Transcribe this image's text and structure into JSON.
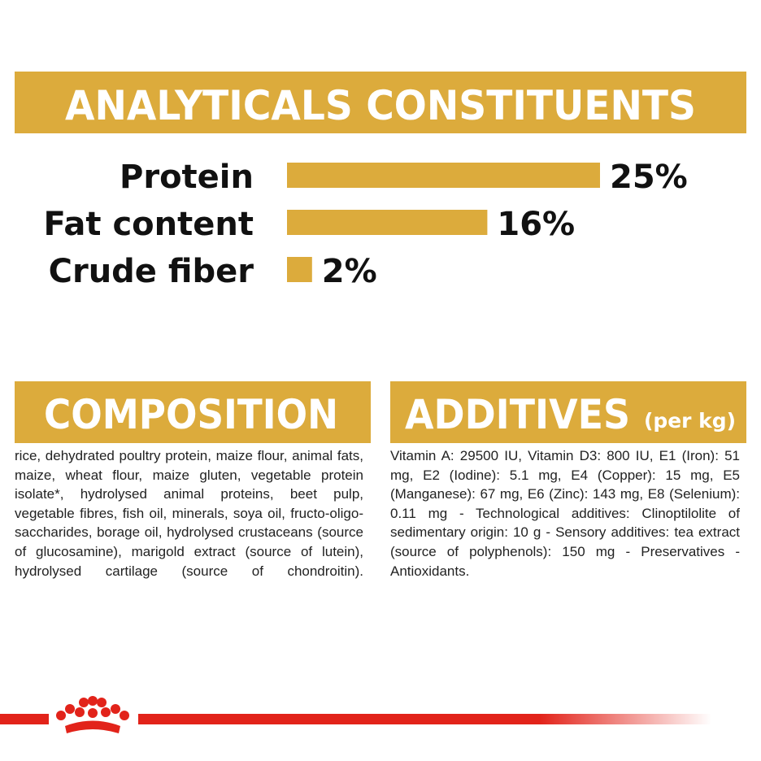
{
  "chart_data": {
    "type": "bar",
    "orientation": "horizontal",
    "title": "ANALYTICALS CONSTITUENTS",
    "categories": [
      "Protein",
      "Fat content",
      "Crude fiber"
    ],
    "values": [
      25,
      16,
      2
    ],
    "value_labels": [
      "25%",
      "16%",
      "2%"
    ],
    "color": "#dcab3c"
  },
  "composition": {
    "title": "COMPOSITION",
    "text": "rice, dehydrated poultry protein, maize flour, animal fats, maize, wheat flour, maize gluten, vegetable protein isolate*, hydrolysed animal proteins, beet pulp, vegetable fibres, fish oil, minerals, soya oil, fructo-oligo-saccharides, borage oil, hydrolysed crustaceans (source of glucosamine), marigold extract (source of lutein), hydrolysed cartilage (source of chondroitin)."
  },
  "additives": {
    "title": "ADDITIVES",
    "subtitle": "(per kg)",
    "text": "Vitamin A: 29500 IU, Vitamin D3: 800 IU, E1 (Iron): 51 mg, E2 (Iodine): 5.1 mg, E4 (Copper): 15 mg, E5 (Manganese): 67 mg, E6 (Zinc): 143 mg, E8 (Selenium): 0.11 mg - Technological additives: Clinoptilolite of sedimentary origin: 10 g - Sensory additives: tea extract (source of polyphenols): 150 mg - Preservatives - Antioxidants."
  }
}
